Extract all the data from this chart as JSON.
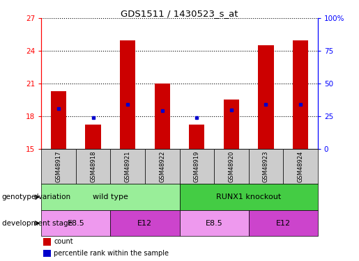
{
  "title": "GDS1511 / 1430523_s_at",
  "samples": [
    "GSM48917",
    "GSM48918",
    "GSM48921",
    "GSM48922",
    "GSM48919",
    "GSM48920",
    "GSM48923",
    "GSM48924"
  ],
  "bar_values": [
    20.3,
    17.2,
    25.0,
    21.0,
    17.2,
    19.5,
    24.5,
    25.0
  ],
  "blue_dot_values": [
    18.7,
    17.85,
    19.1,
    18.5,
    17.85,
    18.6,
    19.1,
    19.1
  ],
  "ylim_left": [
    15,
    27
  ],
  "ylim_right": [
    0,
    100
  ],
  "yticks_left": [
    15,
    18,
    21,
    24,
    27
  ],
  "yticks_right": [
    0,
    25,
    50,
    75,
    100
  ],
  "bar_color": "#cc0000",
  "dot_color": "#0000cc",
  "bar_width": 0.45,
  "genotype_groups": [
    {
      "label": "wild type",
      "start": 0,
      "end": 4,
      "color": "#99ee99"
    },
    {
      "label": "RUNX1 knockout",
      "start": 4,
      "end": 8,
      "color": "#44cc44"
    }
  ],
  "dev_stage_groups": [
    {
      "label": "E8.5",
      "start": 0,
      "end": 2,
      "color": "#ee99ee"
    },
    {
      "label": "E12",
      "start": 2,
      "end": 4,
      "color": "#cc44cc"
    },
    {
      "label": "E8.5",
      "start": 4,
      "end": 6,
      "color": "#ee99ee"
    },
    {
      "label": "E12",
      "start": 6,
      "end": 8,
      "color": "#cc44cc"
    }
  ],
  "legend_items": [
    {
      "label": "count",
      "color": "#cc0000"
    },
    {
      "label": "percentile rank within the sample",
      "color": "#0000cc"
    }
  ],
  "annotation_row1_label": "genotype/variation",
  "annotation_row2_label": "development stage",
  "sample_box_color": "#cccccc",
  "background_color": "#ffffff"
}
